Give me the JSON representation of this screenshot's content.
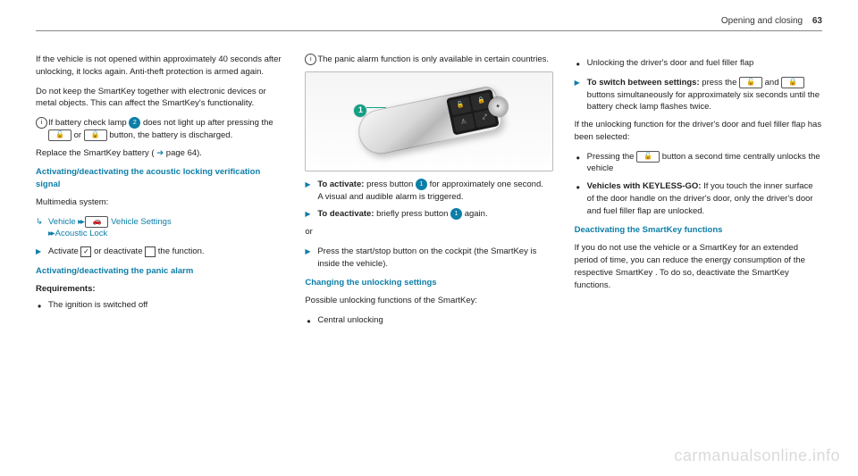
{
  "header": {
    "section": "Opening and closing",
    "page": "63"
  },
  "col1": {
    "p1": "If the vehicle is not opened within approximately 40 seconds after unlocking, it locks again. Anti-theft protection is armed again.",
    "p2": "Do not keep the SmartKey together with electronic devices or metal objects. This can affect the SmartKey's functionality.",
    "info_num": "2",
    "info_text_a": "If battery check lamp ",
    "info_text_b": " does not light up after pressing the ",
    "info_text_c": " or ",
    "info_text_d": " button, the battery is discharged.",
    "unlock_glyph": "🔓",
    "lock_glyph": "🔒",
    "replace_a": "Replace the SmartKey battery (",
    "replace_b": " page 64).",
    "arrow_glyph": "➔",
    "sec1_title": "Activating/deactivating the acoustic locking verification signal",
    "mm_label": "Multimedia system:",
    "nav_arrow": "↳",
    "nav_vehicle": "Vehicle",
    "nav_dbl": "▸▸",
    "nav_settings_icon": "🚗",
    "nav_settings": "Vehicle Settings",
    "nav_dbl2": "▸▸",
    "nav_acoustic": "Acoustic Lock",
    "activate_a": "Activate ",
    "chk_on": "✓",
    "activate_b": " or deactivate ",
    "activate_c": " the function.",
    "sec2_title": "Activating/deactivating the panic alarm",
    "req_label": "Requirements:",
    "req_item": "The ignition is switched off"
  },
  "col2": {
    "info_text": "The panic alarm function is only available in certain countries.",
    "callout_num": "1",
    "fob": {
      "btn1": "🔓",
      "btn2": "🔒",
      "btn3": "⚠",
      "btn4": "⤢",
      "emblem": "✦"
    },
    "act_label": "To activate:",
    "act_a": " press button ",
    "act_b": " for approximately one second.",
    "act_c": "A visual and audible alarm is triggered.",
    "deact_label": "To deactivate:",
    "deact_a": " briefly press button ",
    "deact_b": " again.",
    "or": "or",
    "press_start": "Press the start/stop button on the cockpit (the SmartKey is inside the vehicle).",
    "sec3_title": "Changing the unlocking settings",
    "poss": "Possible unlocking functions of the SmartKey:",
    "bul1": "Central unlocking"
  },
  "col3": {
    "bul2": "Unlocking the driver's door and fuel filler flap",
    "switch_label": "To switch between settings:",
    "switch_a": " press the ",
    "switch_b": " and ",
    "switch_c": " buttons simultaneously for approximately six seconds until the battery check lamp flashes twice.",
    "unlock_glyph": "🔓",
    "lock_glyph": "🔒",
    "if_sel": "If the unlocking function for the driver's door and fuel filler flap has been selected:",
    "bul3a": "Pressing the ",
    "bul3b": " button a second time centrally unlocks the vehicle",
    "bul4_label": "Vehicles with KEYLESS-GO:",
    "bul4": " If you touch the inner surface of the door handle on the driver's door, only the driver's door and fuel filler flap are unlocked.",
    "sec4_title": "Deactivating the SmartKey functions",
    "p_deact": "If you do not use the vehicle or a SmartKey for an extended period of time, you can reduce the energy consumption of the respective SmartKey . To do so, deactivate the SmartKey functions."
  },
  "watermark": "carmanualsonline.info",
  "colors": {
    "accent": "#0d7ea8",
    "callout": "#14a085"
  }
}
